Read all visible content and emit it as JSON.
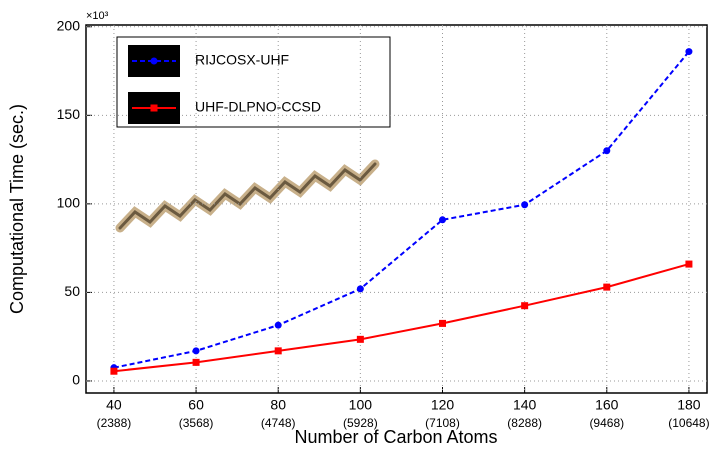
{
  "chart_data": {
    "type": "line",
    "x_label": "Number of Carbon Atoms",
    "y_label": "Computational Time (sec.)",
    "y_multiplier": "×10³",
    "x": [
      40,
      60,
      80,
      100,
      120,
      140,
      160,
      180
    ],
    "x_sublabels": [
      "(2388)",
      "(3568)",
      "(4748)",
      "(5928)",
      "(7108)",
      "(8288)",
      "(9468)",
      "(10648)"
    ],
    "series": [
      {
        "name": "RIJCOSX-UHF",
        "color": "#0000ff",
        "linestyle": "dashed",
        "marker": "circle",
        "values": [
          7.5,
          17,
          31.5,
          52,
          91,
          99.5,
          130,
          186
        ]
      },
      {
        "name": "UHF-DLPNO-CCSD",
        "color": "#ff0000",
        "linestyle": "solid",
        "marker": "square",
        "values": [
          5.5,
          10.5,
          17,
          23.5,
          32.5,
          42.5,
          53,
          66
        ]
      }
    ],
    "xlim": [
      33.2,
      184.4
    ],
    "ylim": [
      -6.8,
      201
    ],
    "xticks": [
      40,
      60,
      80,
      100,
      120,
      140,
      160,
      180
    ],
    "yticks": [
      0,
      50,
      100,
      150,
      200
    ],
    "grid": true
  }
}
